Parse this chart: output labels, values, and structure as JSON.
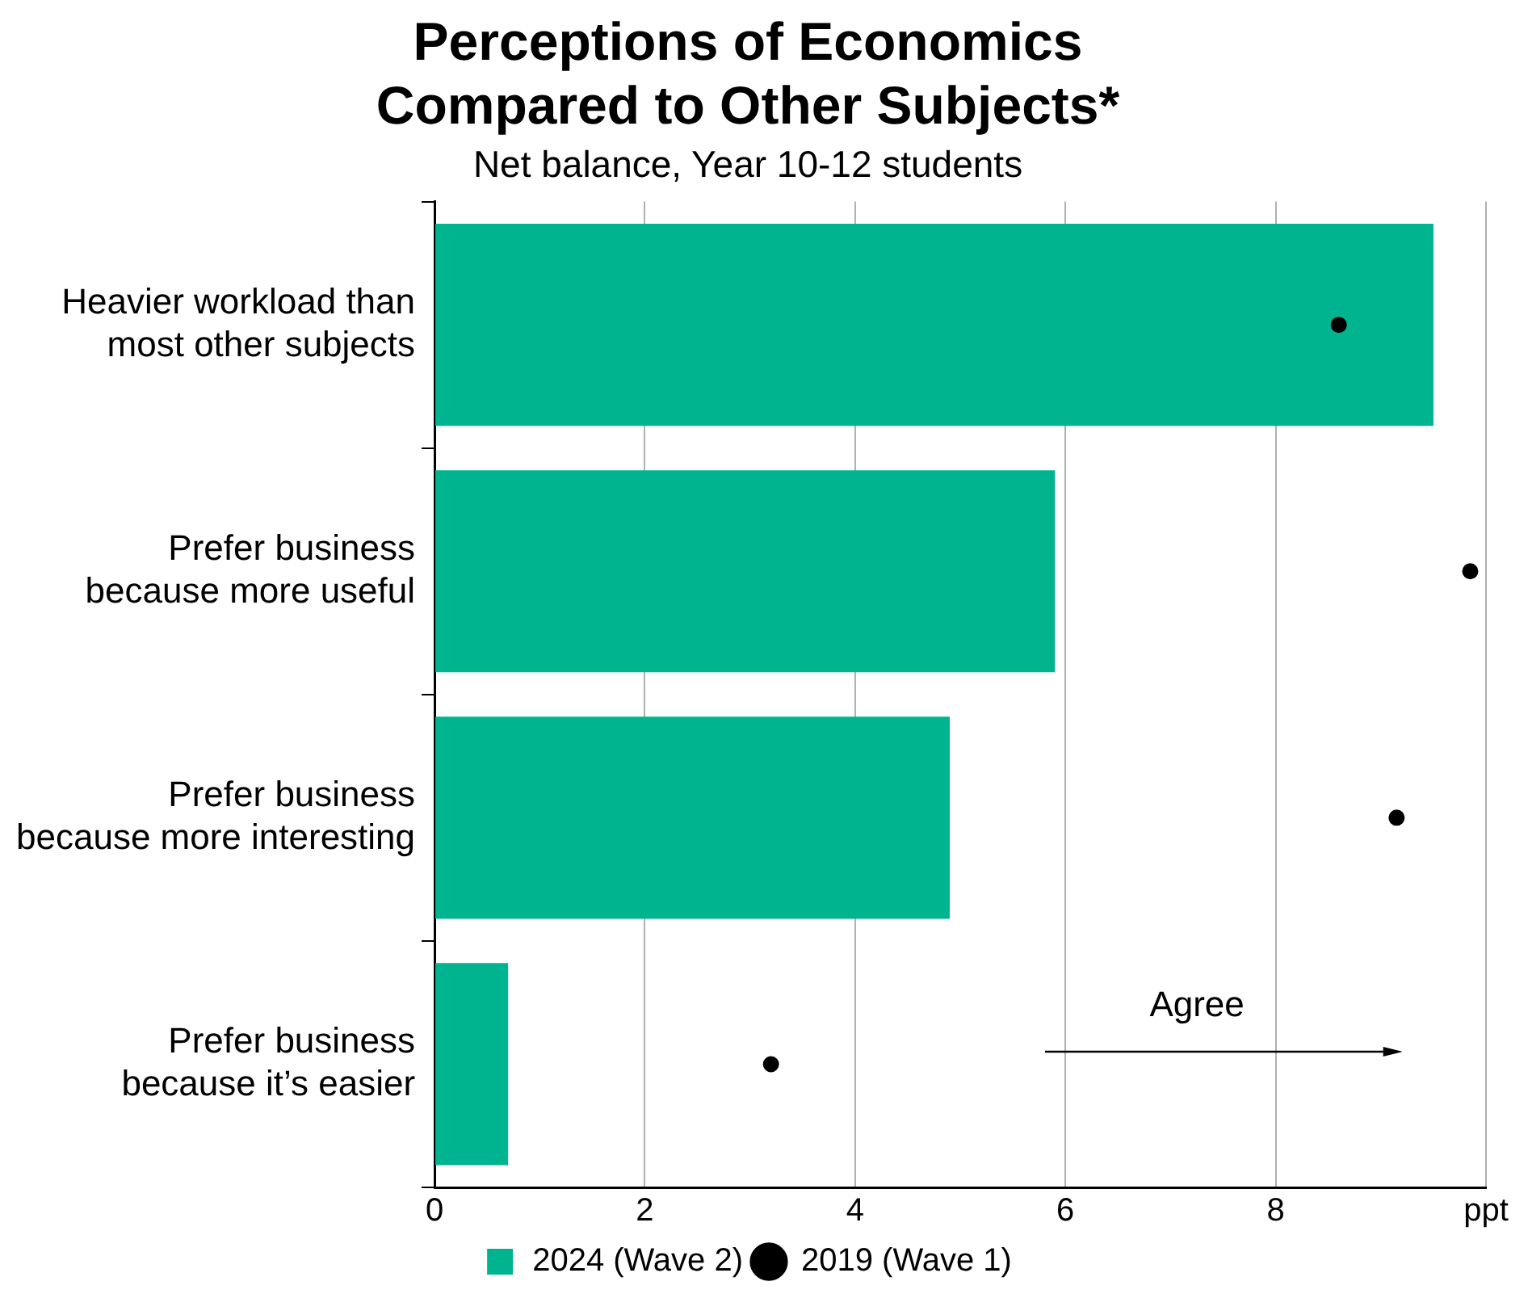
{
  "chart_data": {
    "type": "bar",
    "orientation": "horizontal",
    "title": "Perceptions of Economics Compared to Other Subjects*",
    "subtitle": "Net balance, Year 10-12 students",
    "categories": [
      "Heavier workload than most other subjects",
      "Prefer business because more useful",
      "Prefer business because more interesting",
      "Prefer business because it’s easier"
    ],
    "series": [
      {
        "name": "2024 (Wave 2)",
        "color": "#00b48f",
        "values": [
          9.5,
          5.9,
          4.9,
          0.7
        ]
      },
      {
        "name": "2019 (Wave 1)",
        "type": "scatter",
        "color": "#000000",
        "values": [
          8.6,
          9.85,
          9.15,
          3.2
        ]
      }
    ],
    "xlim": [
      0,
      10
    ],
    "xticks": [
      0,
      2,
      4,
      6,
      8,
      {
        "value": 10,
        "label": "ppt"
      }
    ],
    "grid": "x",
    "legend": "bottom",
    "marker": "circle",
    "annotations": [
      "Agree"
    ]
  }
}
